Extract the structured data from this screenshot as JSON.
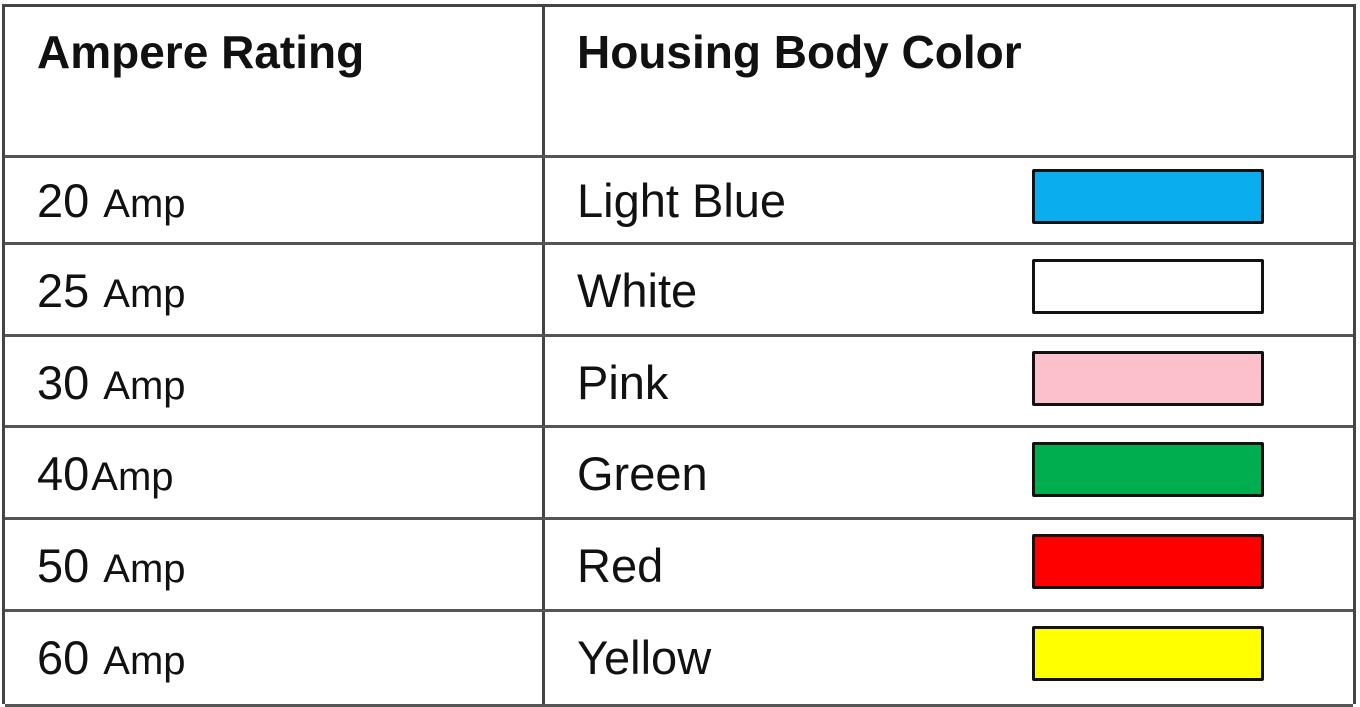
{
  "table": {
    "headers": [
      "Ampere Rating",
      "Housing Body Color"
    ],
    "rows": [
      {
        "value": "20",
        "unit": "Amp",
        "color": "Light Blue",
        "swatch": "#0AAEEF"
      },
      {
        "value": "25",
        "unit": "Amp",
        "color": "White",
        "swatch": "#FFFFFF"
      },
      {
        "value": "30",
        "unit": "Amp",
        "color": "Pink",
        "swatch": "#FBC0CC"
      },
      {
        "value": "40",
        "unit": "Amp",
        "color": "Green",
        "swatch": "#00AE4F"
      },
      {
        "value": "50",
        "unit": "Amp",
        "color": "Red",
        "swatch": "#FF0000"
      },
      {
        "value": "60",
        "unit": "Amp",
        "color": "Yellow",
        "swatch": "#FFFF00"
      }
    ]
  }
}
